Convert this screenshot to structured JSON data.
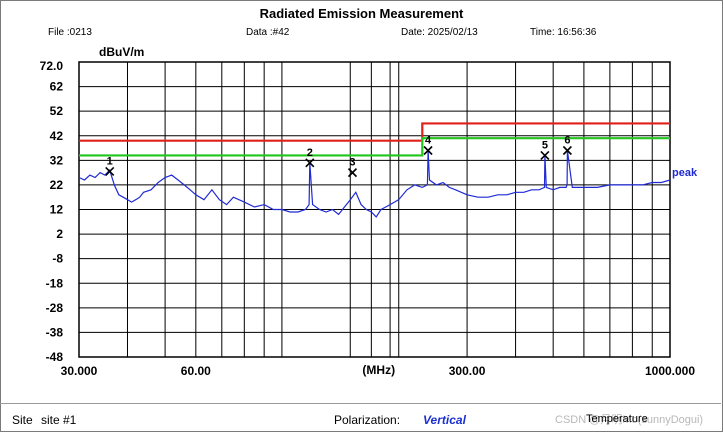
{
  "header": {
    "title": "Radiated Emission Measurement",
    "file": "File :0213",
    "data": "Data :#42",
    "date": "Date: 2025/02/13",
    "time": "Time: 16:56:36"
  },
  "footer": {
    "site_label": "Site",
    "site_value": "site #1",
    "polarization_label": "Polarization:",
    "polarization_value": "Vertical",
    "temperature_label": "Temperature",
    "watermark": "CSDN @月明Mo(sunnyDogui)"
  },
  "colors": {
    "trace": "#1f2ad6",
    "limit_red": "#e0201a",
    "limit_green": "#22c41e",
    "grid": "#000000",
    "text": "#000000"
  },
  "chart_data": {
    "type": "line",
    "title": "Radiated Emission Measurement",
    "ylabel": "dBuV/m",
    "xlabel": "(MHz)",
    "x_scale": "log",
    "xlim": [
      30,
      1000
    ],
    "ylim": [
      -48,
      72
    ],
    "y_ticks": [
      72,
      62,
      52,
      42,
      32,
      22,
      12,
      2,
      -8,
      -18,
      -28,
      -38,
      -48
    ],
    "y_tick_labels": [
      "72.0",
      "62",
      "52",
      "42",
      "32",
      "22",
      "12",
      "2",
      "-8",
      "-18",
      "-28",
      "-38",
      "-48"
    ],
    "x_tick_labels": [
      {
        "value": 30,
        "label": "30.000"
      },
      {
        "value": 60,
        "label": "60.00"
      },
      {
        "value": 300,
        "label": "300.00"
      },
      {
        "value": 1000,
        "label": "1000.000"
      }
    ],
    "x_minor_grid": [
      40,
      50,
      70,
      80,
      90,
      100,
      150,
      170,
      190,
      200,
      400,
      500,
      600,
      700,
      800,
      900
    ],
    "limits": [
      {
        "name": "red",
        "segments": [
          {
            "x": [
              30,
              230
            ],
            "y": 40
          },
          {
            "x": [
              230,
              1000
            ],
            "y": 47
          }
        ]
      },
      {
        "name": "green",
        "segments": [
          {
            "x": [
              30,
              230
            ],
            "y": 34
          },
          {
            "x": [
              230,
              1000
            ],
            "y": 41
          }
        ]
      }
    ],
    "series": [
      {
        "name": "peak",
        "x": [
          30,
          31,
          32,
          33,
          34,
          35,
          36,
          37,
          38,
          39,
          40,
          41,
          42,
          43,
          44,
          46,
          48,
          50,
          52,
          54,
          56,
          58,
          60,
          63,
          66,
          69,
          72,
          75,
          80,
          85,
          90,
          95,
          100,
          105,
          110,
          115,
          117.5,
          118,
          120,
          125,
          130,
          135,
          140,
          145,
          150,
          155,
          160,
          165,
          170,
          175,
          180,
          190,
          200,
          210,
          220,
          230,
          237,
          238,
          240,
          250,
          260,
          270,
          280,
          300,
          320,
          340,
          360,
          380,
          400,
          420,
          440,
          460,
          475,
          476,
          480,
          500,
          520,
          540,
          543,
          544,
          560,
          600,
          650,
          700,
          750,
          800,
          850,
          900,
          950,
          1000
        ],
        "y": [
          25,
          24,
          26,
          25,
          27,
          26,
          28,
          22,
          18,
          17,
          16,
          15,
          16,
          17,
          19,
          20,
          23,
          25,
          26,
          24,
          22,
          20,
          18,
          16,
          20,
          16,
          14,
          17,
          15,
          13,
          14,
          12,
          12,
          11,
          11,
          12,
          14,
          31,
          14,
          12,
          11,
          12,
          10,
          13,
          16,
          19,
          14,
          12,
          11,
          9,
          12,
          14,
          16,
          20,
          22,
          21,
          22,
          36,
          24,
          22,
          23,
          21,
          20,
          18,
          17,
          17,
          18,
          18,
          19,
          19,
          20,
          20,
          21,
          34,
          21,
          20,
          21,
          21,
          22,
          36,
          21,
          21,
          21,
          22,
          22,
          22,
          22,
          23,
          23,
          24
        ]
      }
    ],
    "series_label": "peak",
    "markers": [
      {
        "label": "1",
        "x": 36,
        "y": 27.5
      },
      {
        "label": "2",
        "x": 118,
        "y": 31
      },
      {
        "label": "3",
        "x": 152,
        "y": 27
      },
      {
        "label": "4",
        "x": 238,
        "y": 36
      },
      {
        "label": "5",
        "x": 476,
        "y": 34
      },
      {
        "label": "6",
        "x": 544,
        "y": 36
      }
    ]
  }
}
